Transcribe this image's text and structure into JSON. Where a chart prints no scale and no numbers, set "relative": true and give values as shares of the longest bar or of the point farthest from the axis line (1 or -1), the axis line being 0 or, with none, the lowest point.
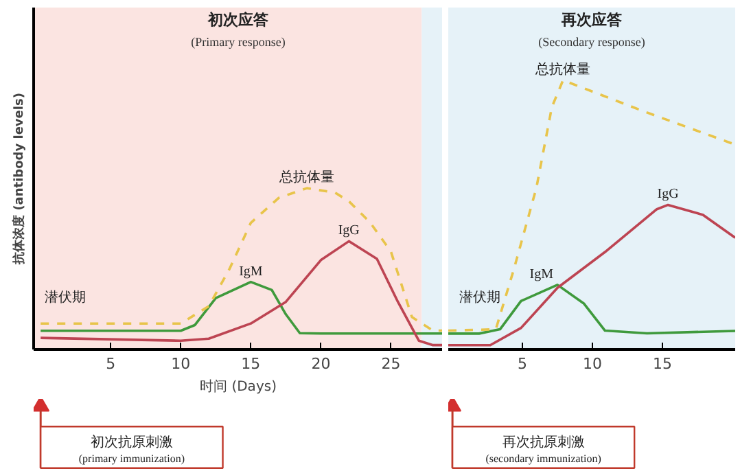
{
  "chart_data": [
    {
      "type": "line",
      "relative": true,
      "title": "初次应答",
      "subtitle": "(Primary response)",
      "xlabel": "时间 (Days)",
      "ylabel": "抗体浓度 (antibody levels)",
      "xlim": [
        -0.5,
        28.7
      ],
      "xticks": [
        5,
        10,
        15,
        20,
        25
      ],
      "series": [
        {
          "name": "IgM",
          "color": "#3f9a3c",
          "line_style": "solid",
          "x": [
            0,
            10,
            11,
            12.5,
            15,
            16.5,
            17.5,
            18.5,
            20,
            28.7
          ],
          "values": [
            0.116,
            0.116,
            0.151,
            0.319,
            0.419,
            0.369,
            0.218,
            0.101,
            0.099,
            0.099
          ]
        },
        {
          "name": "IgG",
          "color": "#bd4452",
          "line_style": "solid",
          "x": [
            0,
            10,
            12,
            15,
            17.5,
            20,
            22,
            24,
            25.5,
            27,
            28,
            28.7
          ],
          "values": [
            0.072,
            0.054,
            0.067,
            0.161,
            0.295,
            0.554,
            0.671,
            0.562,
            0.295,
            0.054,
            0.027,
            0.027
          ]
        },
        {
          "name": "总抗体量",
          "color": "#e8c44a",
          "line_style": "dashed",
          "x": [
            0,
            10,
            12,
            13.5,
            15,
            17,
            19,
            21,
            22,
            23.5,
            25,
            26.5,
            28,
            28.7
          ],
          "values": [
            0.161,
            0.161,
            0.268,
            0.503,
            0.785,
            0.94,
            1,
            0.973,
            0.919,
            0.789,
            0.607,
            0.201,
            0.117,
            0.117
          ]
        }
      ],
      "bands": [
        {
          "axis": "x",
          "from": -0.5,
          "to": 27.2,
          "color": "#fbe4e1"
        },
        {
          "axis": "x",
          "from": 27.2,
          "to": 28.7,
          "color": "#e6f2f8"
        }
      ],
      "annotations": [
        "潜伏期",
        "初次抗原刺激\n(primary immunization)"
      ]
    },
    {
      "type": "line",
      "relative": true,
      "title": "再次应答",
      "subtitle": "(Secondary response)",
      "xlim": [
        -0.3,
        20.2
      ],
      "xticks": [
        5,
        10,
        15
      ],
      "series": [
        {
          "name": "IgM",
          "color": "#3f9a3c",
          "line_style": "solid",
          "x": [
            -0.3,
            1.9,
            3.4,
            4.9,
            7.5,
            9.4,
            10.9,
            13.9,
            20.2
          ],
          "values": [
            0.059,
            0.059,
            0.075,
            0.18,
            0.24,
            0.17,
            0.07,
            0.06,
            0.069
          ]
        },
        {
          "name": "IgG",
          "color": "#bd4452",
          "line_style": "solid",
          "x": [
            -0.3,
            2.7,
            4.9,
            7.5,
            10.9,
            14.6,
            15.4,
            17.9,
            20.2
          ],
          "values": [
            0.016,
            0.016,
            0.08,
            0.229,
            0.362,
            0.521,
            0.537,
            0.5,
            0.415
          ]
        },
        {
          "name": "总抗体量",
          "color": "#e8c44a",
          "line_style": "dashed",
          "x": [
            -0.3,
            3.1,
            4.4,
            6.0,
            7.1,
            7.9,
            13.9,
            20.2
          ],
          "values": [
            0.07,
            0.075,
            0.3,
            0.601,
            0.9,
            1,
            0.88,
            0.761
          ]
        }
      ],
      "bands": [
        {
          "axis": "x",
          "from": -0.3,
          "to": 20.2,
          "color": "#e6f2f8"
        }
      ],
      "annotations": [
        "潜伏期",
        "再次抗原刺激\n(secondary immunization)"
      ]
    }
  ]
}
